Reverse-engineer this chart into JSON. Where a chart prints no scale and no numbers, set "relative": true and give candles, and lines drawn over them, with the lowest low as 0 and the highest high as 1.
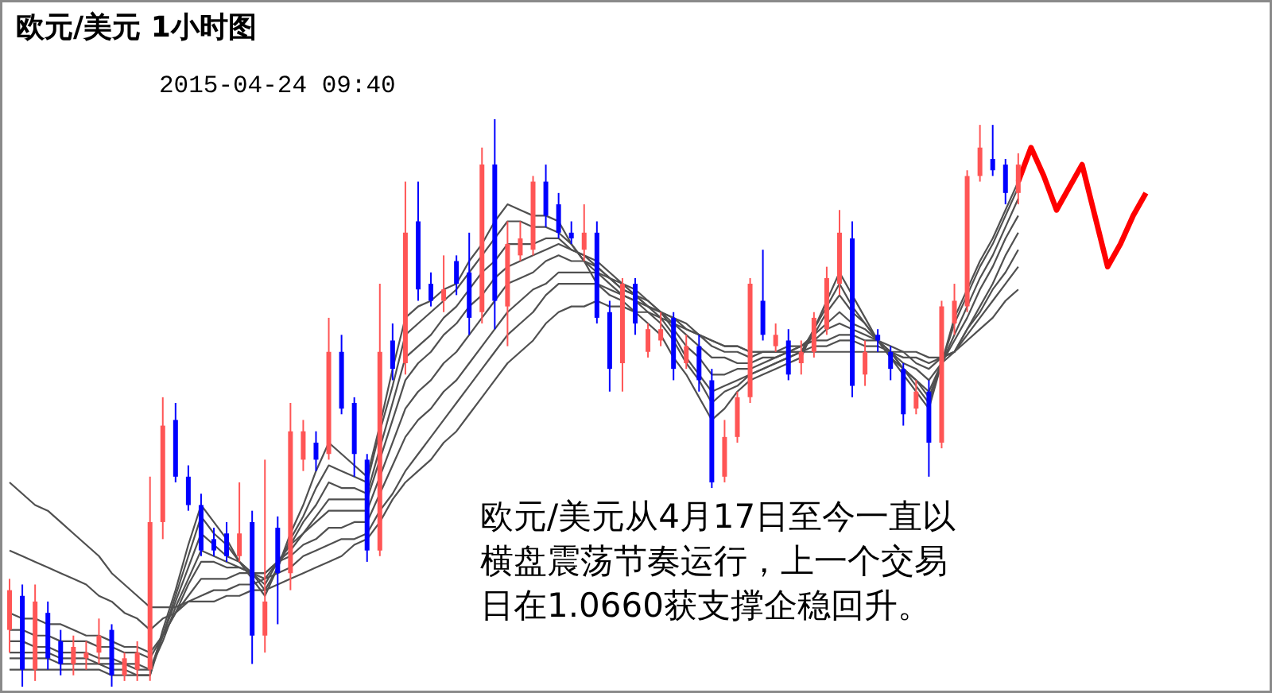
{
  "chart_data": {
    "type": "candlestick",
    "title": "欧元/美元 1小时图",
    "subtitle": "2015-04-24 09:40",
    "annotations": [
      "欧元/美元从4月17日至今一直以横盘震荡节奏运行，上一个交易日在1.0660获支撑企稳回升。"
    ],
    "relative": true,
    "categories": [
      null,
      null,
      null,
      null,
      null,
      null,
      null,
      null,
      null,
      null,
      null,
      null,
      null,
      null,
      null,
      null,
      null,
      null,
      null,
      null,
      null,
      null,
      null,
      null,
      null,
      null,
      null,
      null,
      null,
      null,
      null,
      null,
      null,
      null,
      null,
      null,
      null,
      null,
      null,
      null,
      null,
      null,
      null,
      null,
      null,
      null,
      null,
      null,
      null,
      null,
      null,
      null,
      null,
      null,
      null,
      null,
      null,
      null,
      null,
      null,
      null,
      null,
      null,
      null,
      null,
      null,
      null,
      null,
      null,
      null,
      null,
      null,
      null,
      null,
      null,
      null,
      null,
      null,
      null,
      null,
      null,
      null,
      null,
      null,
      null,
      null,
      null,
      null,
      null,
      null,
      null,
      null,
      null,
      null,
      null,
      null,
      null,
      null,
      null
    ],
    "ohlc": [
      [
        0.1,
        0.19,
        0.06,
        0.17
      ],
      [
        0.16,
        0.18,
        0,
        0.03
      ],
      [
        0.03,
        0.18,
        0.01,
        0.15
      ],
      [
        0.13,
        0.15,
        0.03,
        0.05
      ],
      [
        0.08,
        0.1,
        0.02,
        0.04
      ],
      [
        0.04,
        0.09,
        0.02,
        0.07
      ],
      [
        0.05,
        0.08,
        0.03,
        0.06
      ],
      [
        0.06,
        0.12,
        0.04,
        0.09
      ],
      [
        0.1,
        0.11,
        0,
        0.02
      ],
      [
        0.02,
        0.06,
        0.01,
        0.05
      ],
      [
        0.03,
        0.08,
        0.01,
        0.06
      ],
      [
        0.03,
        0.37,
        0.01,
        0.29
      ],
      [
        0.29,
        0.51,
        0.26,
        0.46
      ],
      [
        0.47,
        0.5,
        0.36,
        0.37
      ],
      [
        0.37,
        0.39,
        0.31,
        0.32
      ],
      [
        0.32,
        0.34,
        0.23,
        0.24
      ],
      [
        0.26,
        0.28,
        0.23,
        0.24
      ],
      [
        0.27,
        0.29,
        0.22,
        0.23
      ],
      [
        0.23,
        0.36,
        0.22,
        0.27
      ],
      [
        0.29,
        0.31,
        0.04,
        0.09
      ],
      [
        0.09,
        0.4,
        0.06,
        0.15
      ],
      [
        0.28,
        0.3,
        0.11,
        0.2
      ],
      [
        0.2,
        0.5,
        0.17,
        0.45
      ],
      [
        0.4,
        0.47,
        0.38,
        0.45
      ],
      [
        0.43,
        0.45,
        0.38,
        0.4
      ],
      [
        0.41,
        0.65,
        0.4,
        0.59
      ],
      [
        0.59,
        0.62,
        0.48,
        0.49
      ],
      [
        0.5,
        0.51,
        0.37,
        0.41
      ],
      [
        0.4,
        0.41,
        0.22,
        0.24
      ],
      [
        0.24,
        0.71,
        0.23,
        0.59
      ],
      [
        0.61,
        0.64,
        0.54,
        0.56
      ],
      [
        0.57,
        0.89,
        0.55,
        0.8
      ],
      [
        0.82,
        0.89,
        0.68,
        0.7
      ],
      [
        0.71,
        0.73,
        0.67,
        0.68
      ],
      [
        0.68,
        0.76,
        0.66,
        0.7
      ],
      [
        0.75,
        0.76,
        0.69,
        0.71
      ],
      [
        0.73,
        0.8,
        0.62,
        0.65
      ],
      [
        0.66,
        0.95,
        0.64,
        0.92
      ],
      [
        0.92,
        1,
        0.63,
        0.68
      ],
      [
        0.67,
        0.82,
        0.6,
        0.78
      ],
      [
        0.76,
        0.82,
        0.75,
        0.79
      ],
      [
        0.77,
        0.9,
        0.76,
        0.89
      ],
      [
        0.89,
        0.92,
        0.81,
        0.83
      ],
      [
        0.85,
        0.87,
        0.79,
        0.8
      ],
      [
        0.8,
        0.82,
        0.78,
        0.79
      ],
      [
        0.77,
        0.85,
        0.75,
        0.8
      ],
      [
        0.8,
        0.82,
        0.64,
        0.65
      ],
      [
        0.66,
        0.68,
        0.52,
        0.56
      ],
      [
        0.57,
        0.72,
        0.52,
        0.71
      ],
      [
        0.71,
        0.72,
        0.62,
        0.64
      ],
      [
        0.59,
        0.64,
        0.58,
        0.63
      ],
      [
        0.61,
        0.66,
        0.6,
        0.63
      ],
      [
        0.65,
        0.66,
        0.54,
        0.56
      ],
      [
        0.57,
        0.62,
        0.56,
        0.6
      ],
      [
        0.6,
        0.62,
        0.52,
        0.54
      ],
      [
        0.54,
        0.56,
        0.35,
        0.36
      ],
      [
        0.37,
        0.47,
        0.36,
        0.44
      ],
      [
        0.44,
        0.52,
        0.43,
        0.51
      ],
      [
        0.51,
        0.72,
        0.5,
        0.71
      ],
      [
        0.68,
        0.77,
        0.61,
        0.62
      ],
      [
        0.6,
        0.64,
        0.59,
        0.62
      ],
      [
        0.61,
        0.63,
        0.54,
        0.55
      ],
      [
        0.57,
        0.61,
        0.55,
        0.59
      ],
      [
        0.59,
        0.66,
        0.58,
        0.65
      ],
      [
        0.63,
        0.74,
        0.62,
        0.72
      ],
      [
        0.71,
        0.84,
        0.69,
        0.8
      ],
      [
        0.79,
        0.82,
        0.51,
        0.53
      ],
      [
        0.55,
        0.61,
        0.53,
        0.59
      ],
      [
        0.62,
        0.63,
        0.59,
        0.61
      ],
      [
        0.59,
        0.6,
        0.54,
        0.56
      ],
      [
        0.56,
        0.57,
        0.46,
        0.48
      ],
      [
        0.49,
        0.54,
        0.48,
        0.52
      ],
      [
        0.52,
        0.54,
        0.37,
        0.43
      ],
      [
        0.43,
        0.68,
        0.42,
        0.67
      ],
      [
        0.64,
        0.71,
        0.62,
        0.68
      ],
      [
        0.67,
        0.91,
        0.66,
        0.9
      ],
      [
        0.9,
        0.99,
        0.89,
        0.95
      ],
      [
        0.93,
        0.99,
        0.9,
        0.91
      ],
      [
        0.92,
        0.93,
        0.85,
        0.87
      ],
      [
        0.87,
        0.94,
        0.85,
        0.92
      ],
      null,
      null,
      null,
      null,
      null,
      null,
      null,
      null,
      null,
      null,
      null,
      null,
      null,
      null,
      null,
      null,
      null,
      null,
      null
    ],
    "colors": [
      "#ff5555",
      "#0000ff",
      "#ff5555",
      "#0000ff",
      "#0000ff",
      "#ff5555",
      "#ff5555",
      "#ff5555",
      "#0000ff",
      "#ff5555",
      "#ff5555",
      "#ff5555",
      "#ff5555",
      "#0000ff",
      "#0000ff",
      "#0000ff",
      "#0000ff",
      "#0000ff",
      "#ff5555",
      "#0000ff",
      "#ff5555",
      "#0000ff",
      "#ff5555",
      "#ff5555",
      "#0000ff",
      "#ff5555",
      "#0000ff",
      "#0000ff",
      "#0000ff",
      "#ff5555",
      "#0000ff",
      "#ff5555",
      "#0000ff",
      "#0000ff",
      "#ff5555",
      "#0000ff",
      "#0000ff",
      "#ff5555",
      "#0000ff",
      "#ff5555",
      "#ff5555",
      "#ff5555",
      "#0000ff",
      "#0000ff",
      "#0000ff",
      "#ff5555",
      "#0000ff",
      "#0000ff",
      "#ff5555",
      "#0000ff",
      "#ff5555",
      "#ff5555",
      "#0000ff",
      "#ff5555",
      "#0000ff",
      "#0000ff",
      "#ff5555",
      "#ff5555",
      "#ff5555",
      "#0000ff",
      "#ff5555",
      "#0000ff",
      "#ff5555",
      "#ff5555",
      "#ff5555",
      "#ff5555",
      "#0000ff",
      "#ff5555",
      "#0000ff",
      "#0000ff",
      "#0000ff",
      "#ff5555",
      "#0000ff",
      "#ff5555",
      "#ff5555",
      "#ff5555",
      "#ff5555",
      "#0000ff",
      "#0000ff",
      "#ff5555",
      null,
      null,
      null,
      null,
      null,
      null,
      null,
      null,
      null,
      null,
      null,
      null,
      null,
      null,
      null,
      null,
      null,
      null,
      null
    ],
    "series": [
      {
        "type": "line",
        "color": "#505050",
        "values": [
          0.03,
          0.03,
          0.03,
          0.03,
          0.03,
          0.03,
          0.03,
          0.03,
          0.02,
          0.02,
          0.02,
          0.02,
          0.1,
          0.17,
          0.25,
          0.32,
          0.29,
          0.26,
          0.22,
          0.19,
          0.16,
          0.21,
          0.27,
          0.32,
          0.38,
          0.43,
          0.41,
          0.39,
          0.37,
          0.46,
          0.56,
          0.65,
          0.67,
          0.68,
          0.7,
          0.71,
          0.75,
          0.78,
          0.82,
          0.85,
          0.84,
          0.83,
          0.83,
          0.82,
          0.78,
          0.75,
          0.71,
          0.69,
          0.68,
          0.66,
          0.64,
          0.62,
          0.58,
          0.55,
          0.51,
          0.47,
          0.49,
          0.52,
          0.54,
          0.55,
          0.56,
          0.57,
          0.58,
          0.63,
          0.68,
          0.73,
          0.69,
          0.65,
          0.61,
          0.58,
          0.55,
          0.52,
          0.49,
          0.57,
          0.65,
          0.7,
          0.75,
          0.79,
          0.84,
          0.89,
          null,
          null,
          null,
          null,
          null,
          null,
          null,
          null,
          null,
          null,
          null,
          null,
          null,
          null,
          null,
          null,
          null,
          null,
          null
        ]
      },
      {
        "type": "line",
        "color": "#505050",
        "values": [
          0.05,
          0.05,
          0.05,
          0.05,
          0.04,
          0.04,
          0.04,
          0.04,
          0.03,
          0.03,
          0.02,
          0.02,
          0.09,
          0.16,
          0.23,
          0.3,
          0.27,
          0.25,
          0.22,
          0.2,
          0.17,
          0.21,
          0.26,
          0.3,
          0.35,
          0.39,
          0.38,
          0.37,
          0.36,
          0.45,
          0.53,
          0.62,
          0.64,
          0.66,
          0.68,
          0.7,
          0.73,
          0.76,
          0.79,
          0.82,
          0.82,
          0.81,
          0.81,
          0.8,
          0.78,
          0.75,
          0.73,
          0.71,
          0.69,
          0.68,
          0.66,
          0.64,
          0.61,
          0.57,
          0.54,
          0.5,
          0.52,
          0.53,
          0.55,
          0.56,
          0.57,
          0.58,
          0.59,
          0.63,
          0.67,
          0.71,
          0.67,
          0.64,
          0.61,
          0.58,
          0.56,
          0.53,
          0.5,
          0.57,
          0.64,
          0.69,
          0.74,
          0.78,
          0.83,
          0.88,
          null,
          null,
          null,
          null,
          null,
          null,
          null,
          null,
          null,
          null,
          null,
          null,
          null,
          null,
          null,
          null,
          null,
          null,
          null
        ]
      },
      {
        "type": "line",
        "color": "#505050",
        "values": [
          0.06,
          0.06,
          0.06,
          0.06,
          0.05,
          0.05,
          0.05,
          0.04,
          0.04,
          0.04,
          0.03,
          0.03,
          0.09,
          0.15,
          0.21,
          0.27,
          0.25,
          0.23,
          0.22,
          0.2,
          0.18,
          0.22,
          0.25,
          0.29,
          0.32,
          0.36,
          0.35,
          0.35,
          0.34,
          0.42,
          0.5,
          0.58,
          0.6,
          0.62,
          0.65,
          0.67,
          0.7,
          0.73,
          0.75,
          0.78,
          0.78,
          0.78,
          0.79,
          0.79,
          0.77,
          0.76,
          0.74,
          0.72,
          0.7,
          0.69,
          0.67,
          0.65,
          0.62,
          0.58,
          0.55,
          0.52,
          0.53,
          0.54,
          0.55,
          0.56,
          0.57,
          0.58,
          0.59,
          0.62,
          0.66,
          0.69,
          0.66,
          0.64,
          0.61,
          0.59,
          0.56,
          0.54,
          0.51,
          0.57,
          0.62,
          0.67,
          0.72,
          0.76,
          0.81,
          0.86,
          null,
          null,
          null,
          null,
          null,
          null,
          null,
          null,
          null,
          null,
          null,
          null,
          null,
          null,
          null,
          null,
          null,
          null,
          null
        ]
      },
      {
        "type": "line",
        "color": "#505050",
        "values": [
          0.08,
          0.08,
          0.07,
          0.07,
          0.06,
          0.06,
          0.06,
          0.05,
          0.05,
          0.04,
          0.04,
          0.03,
          0.08,
          0.14,
          0.19,
          0.24,
          0.23,
          0.22,
          0.21,
          0.2,
          0.19,
          0.22,
          0.25,
          0.27,
          0.3,
          0.33,
          0.33,
          0.33,
          0.33,
          0.4,
          0.47,
          0.54,
          0.57,
          0.59,
          0.62,
          0.64,
          0.67,
          0.69,
          0.72,
          0.74,
          0.75,
          0.76,
          0.77,
          0.78,
          0.77,
          0.76,
          0.75,
          0.73,
          0.71,
          0.7,
          0.68,
          0.66,
          0.63,
          0.6,
          0.58,
          0.55,
          0.55,
          0.56,
          0.56,
          0.57,
          0.58,
          0.59,
          0.6,
          0.62,
          0.64,
          0.66,
          0.64,
          0.63,
          0.61,
          0.59,
          0.56,
          0.54,
          0.52,
          0.57,
          0.61,
          0.65,
          0.7,
          0.74,
          0.79,
          0.83,
          null,
          null,
          null,
          null,
          null,
          null,
          null,
          null,
          null,
          null,
          null,
          null,
          null,
          null,
          null,
          null,
          null,
          null,
          null
        ]
      },
      {
        "type": "line",
        "color": "#505050",
        "values": [
          0.1,
          0.1,
          0.09,
          0.09,
          0.08,
          0.08,
          0.08,
          0.07,
          0.07,
          0.06,
          0.06,
          0.05,
          0.09,
          0.13,
          0.18,
          0.22,
          0.22,
          0.21,
          0.21,
          0.2,
          0.2,
          0.22,
          0.24,
          0.27,
          0.29,
          0.31,
          0.31,
          0.31,
          0.31,
          0.37,
          0.43,
          0.49,
          0.52,
          0.54,
          0.57,
          0.59,
          0.62,
          0.65,
          0.68,
          0.71,
          0.72,
          0.73,
          0.75,
          0.76,
          0.75,
          0.75,
          0.74,
          0.72,
          0.71,
          0.69,
          0.68,
          0.66,
          0.64,
          0.62,
          0.6,
          0.58,
          0.58,
          0.57,
          0.57,
          0.58,
          0.58,
          0.59,
          0.6,
          0.61,
          0.63,
          0.64,
          0.63,
          0.62,
          0.61,
          0.59,
          0.57,
          0.56,
          0.54,
          0.57,
          0.59,
          0.63,
          0.67,
          0.71,
          0.76,
          0.8,
          null,
          null,
          null,
          null,
          null,
          null,
          null,
          null,
          null,
          null,
          null,
          null,
          null,
          null,
          null,
          null,
          null,
          null,
          null
        ]
      },
      {
        "type": "line",
        "color": "#505050",
        "values": [
          0.13,
          0.12,
          0.12,
          0.11,
          0.11,
          0.1,
          0.09,
          0.09,
          0.08,
          0.07,
          0.07,
          0.06,
          0.09,
          0.13,
          0.16,
          0.19,
          0.19,
          0.19,
          0.2,
          0.2,
          0.2,
          0.22,
          0.23,
          0.25,
          0.26,
          0.28,
          0.28,
          0.29,
          0.29,
          0.34,
          0.39,
          0.44,
          0.47,
          0.49,
          0.52,
          0.54,
          0.57,
          0.6,
          0.63,
          0.66,
          0.68,
          0.7,
          0.71,
          0.73,
          0.73,
          0.73,
          0.73,
          0.72,
          0.7,
          0.69,
          0.67,
          0.66,
          0.65,
          0.63,
          0.62,
          0.6,
          0.59,
          0.59,
          0.58,
          0.59,
          0.59,
          0.6,
          0.6,
          0.61,
          0.61,
          0.62,
          0.62,
          0.61,
          0.61,
          0.6,
          0.59,
          0.57,
          0.56,
          0.58,
          0.59,
          0.63,
          0.66,
          0.7,
          0.73,
          0.77,
          null,
          null,
          null,
          null,
          null,
          null,
          null,
          null,
          null,
          null,
          null,
          null,
          null,
          null,
          null,
          null,
          null,
          null,
          null
        ]
      },
      {
        "type": "line",
        "color": "#505050",
        "values": [
          0.24,
          0.23,
          0.22,
          0.21,
          0.2,
          0.19,
          0.18,
          0.16,
          0.15,
          0.13,
          0.12,
          0.1,
          0.12,
          0.13,
          0.15,
          0.16,
          0.17,
          0.17,
          0.18,
          0.18,
          0.19,
          0.2,
          0.21,
          0.23,
          0.24,
          0.25,
          0.26,
          0.26,
          0.27,
          0.31,
          0.34,
          0.38,
          0.41,
          0.44,
          0.47,
          0.5,
          0.53,
          0.56,
          0.59,
          0.62,
          0.64,
          0.66,
          0.69,
          0.71,
          0.71,
          0.71,
          0.71,
          0.7,
          0.69,
          0.68,
          0.67,
          0.66,
          0.65,
          0.64,
          0.62,
          0.61,
          0.6,
          0.6,
          0.59,
          0.59,
          0.59,
          0.59,
          0.59,
          0.6,
          0.6,
          0.61,
          0.61,
          0.6,
          0.6,
          0.59,
          0.58,
          0.58,
          0.57,
          0.58,
          0.59,
          0.62,
          0.65,
          0.68,
          0.71,
          0.74,
          null,
          null,
          null,
          null,
          null,
          null,
          null,
          null,
          null,
          null,
          null,
          null,
          null,
          null,
          null,
          null,
          null,
          null,
          null
        ]
      },
      {
        "type": "line",
        "color": "#505050",
        "values": [
          0.36,
          0.34,
          0.32,
          0.31,
          0.29,
          0.27,
          0.25,
          0.23,
          0.2,
          0.18,
          0.16,
          0.14,
          0.14,
          0.14,
          0.15,
          0.15,
          0.15,
          0.16,
          0.16,
          0.17,
          0.17,
          0.18,
          0.19,
          0.2,
          0.21,
          0.22,
          0.23,
          0.25,
          0.26,
          0.29,
          0.33,
          0.36,
          0.38,
          0.4,
          0.43,
          0.45,
          0.48,
          0.51,
          0.54,
          0.57,
          0.59,
          0.61,
          0.64,
          0.66,
          0.67,
          0.67,
          0.68,
          0.67,
          0.67,
          0.66,
          0.66,
          0.65,
          0.64,
          0.63,
          0.62,
          0.61,
          0.6,
          0.6,
          0.59,
          0.59,
          0.59,
          0.59,
          0.59,
          0.59,
          0.59,
          0.59,
          0.59,
          0.59,
          0.59,
          0.59,
          0.59,
          0.59,
          0.58,
          0.58,
          0.59,
          0.61,
          0.63,
          0.65,
          0.68,
          0.7,
          null,
          null,
          null,
          null,
          null,
          null,
          null,
          null,
          null,
          null,
          null,
          null,
          null,
          null,
          null,
          null,
          null,
          null,
          null
        ]
      },
      {
        "type": "line",
        "color": "#ff0000",
        "values": [
          null,
          null,
          null,
          null,
          null,
          null,
          null,
          null,
          null,
          null,
          null,
          null,
          null,
          null,
          null,
          null,
          null,
          null,
          null,
          null,
          null,
          null,
          null,
          null,
          null,
          null,
          null,
          null,
          null,
          null,
          null,
          null,
          null,
          null,
          null,
          null,
          null,
          null,
          null,
          null,
          null,
          null,
          null,
          null,
          null,
          null,
          null,
          null,
          null,
          null,
          null,
          null,
          null,
          null,
          null,
          null,
          null,
          null,
          null,
          null,
          null,
          null,
          null,
          null,
          null,
          null,
          null,
          null,
          null,
          null,
          null,
          null,
          null,
          null,
          null,
          null,
          null,
          null,
          null,
          0.89,
          0.95,
          0.9,
          0.84,
          0.88,
          0.92,
          0.83,
          0.74,
          0.78,
          0.83,
          0.87,
          null,
          null,
          null,
          null,
          null,
          null,
          null,
          null,
          null
        ]
      }
    ]
  }
}
